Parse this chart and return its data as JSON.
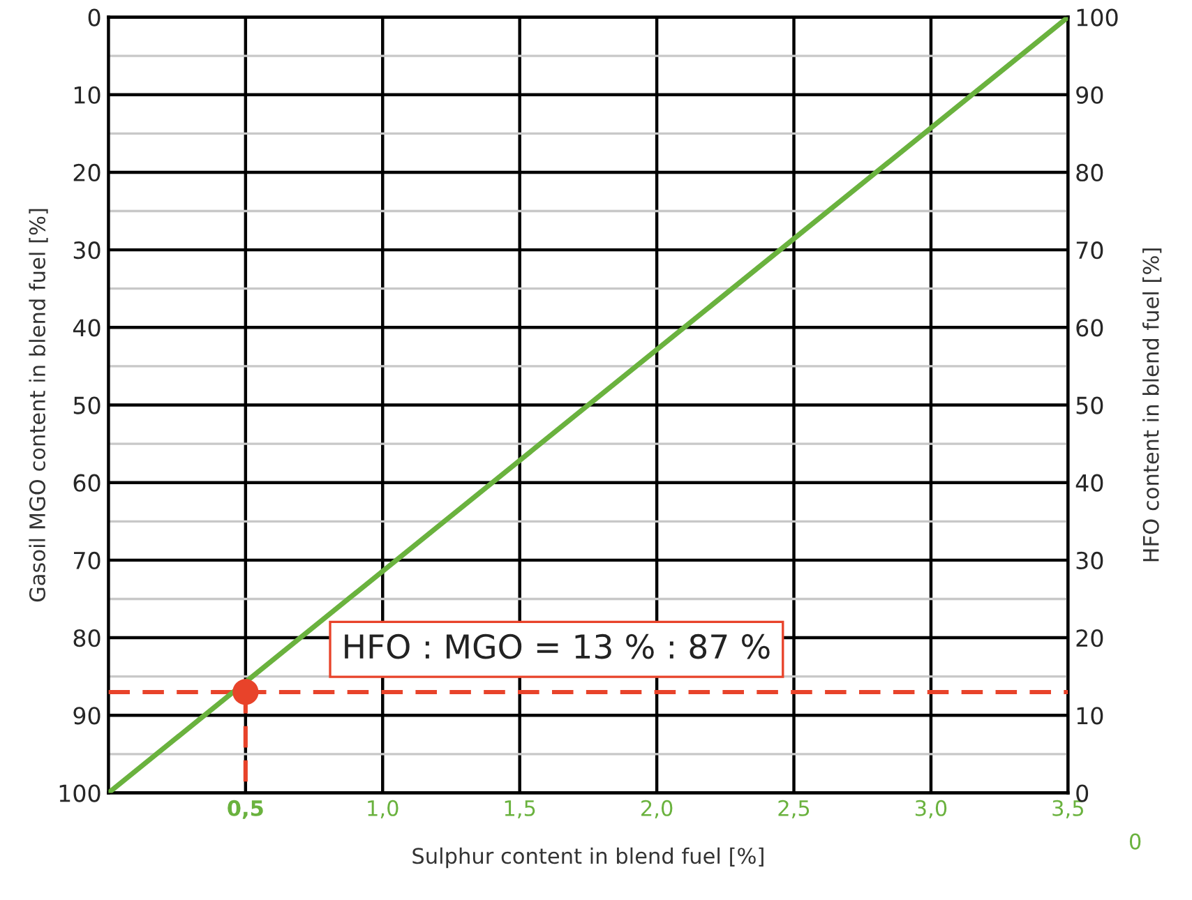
{
  "chart_data": {
    "type": "line",
    "xlabel": "Sulphur content in blend fuel [%]",
    "ylabel": "Gasoil MGO content in blend fuel [%]",
    "y2label": "HFO content in blend fuel [%]",
    "xlim": [
      0,
      3.5
    ],
    "xticks": [
      {
        "value": 0.5,
        "label": "0,5"
      },
      {
        "value": 1.0,
        "label": "1,0"
      },
      {
        "value": 1.5,
        "label": "1,5"
      },
      {
        "value": 2.0,
        "label": "2,0"
      },
      {
        "value": 2.5,
        "label": "2,5"
      },
      {
        "value": 3.0,
        "label": "3,0"
      },
      {
        "value": 3.5,
        "label": "3,5"
      }
    ],
    "ylim": [
      100,
      0
    ],
    "yticks": [
      0,
      10,
      20,
      30,
      40,
      50,
      60,
      70,
      80,
      90,
      100
    ],
    "y2lim": [
      0,
      100
    ],
    "y2ticks": [
      0,
      10,
      20,
      30,
      40,
      50,
      60,
      70,
      80,
      90,
      100
    ],
    "grid": true,
    "series": [
      {
        "color": "#6ab23e",
        "x": [
          0,
          3.5
        ],
        "values": [
          100,
          0
        ],
        "line_style": "solid"
      },
      {
        "color": "#e8432a",
        "x": [
          0.5,
          0.5
        ],
        "values": [
          87,
          100
        ],
        "line_style": "dashed"
      },
      {
        "type": "scatter",
        "color": "#e8432a",
        "x": [
          0.5
        ],
        "values": [
          87
        ],
        "marker": "circle"
      }
    ],
    "ref_lines": [
      {
        "axis": "y",
        "value": 87,
        "color": "#e8432a",
        "line_style": "dashed"
      }
    ],
    "annotations": [
      "HFO : MGO = 13 % : 87 %",
      "0"
    ]
  }
}
